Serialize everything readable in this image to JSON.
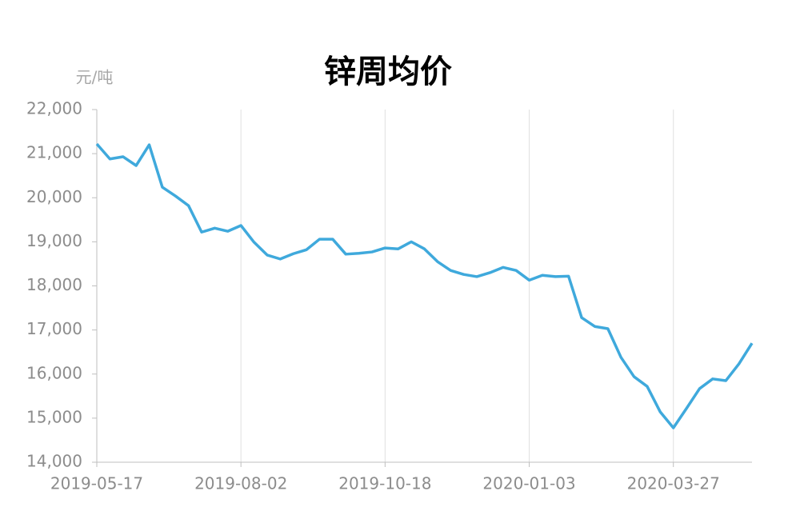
{
  "chart_data": {
    "type": "line",
    "title": "锌周均价",
    "y_unit": "元/吨",
    "categories": [
      "2019-05-17",
      null,
      null,
      null,
      null,
      null,
      null,
      null,
      null,
      null,
      null,
      "2019-08-02",
      null,
      null,
      null,
      null,
      null,
      null,
      null,
      null,
      null,
      null,
      "2019-10-18",
      null,
      null,
      null,
      null,
      null,
      null,
      null,
      null,
      null,
      null,
      "2020-01-03",
      null,
      null,
      null,
      null,
      null,
      null,
      null,
      null,
      null,
      null,
      "2020-03-27",
      null,
      null,
      null,
      null,
      null,
      null
    ],
    "series": [
      {
        "name": "锌周均价",
        "color": "#3fa9dc",
        "values": [
          21220,
          20880,
          20930,
          20730,
          21200,
          20240,
          20040,
          19820,
          19220,
          19310,
          19240,
          19370,
          18990,
          18700,
          18610,
          18730,
          18820,
          19060,
          19060,
          18720,
          18740,
          18770,
          18860,
          18840,
          19000,
          18840,
          18550,
          18350,
          18260,
          18210,
          18300,
          18420,
          18350,
          18130,
          18240,
          18210,
          18220,
          17280,
          17080,
          17030,
          16380,
          15940,
          15720,
          15140,
          14780,
          15220,
          15670,
          15890,
          15850,
          16230,
          16700
        ]
      }
    ],
    "ylim": [
      14000,
      22000
    ],
    "yticks": [
      {
        "value": 14000,
        "label": "14,000"
      },
      {
        "value": 15000,
        "label": "15,000"
      },
      {
        "value": 16000,
        "label": "16,000"
      },
      {
        "value": 17000,
        "label": "17,000"
      },
      {
        "value": 18000,
        "label": "18,000"
      },
      {
        "value": 19000,
        "label": "19,000"
      },
      {
        "value": 20000,
        "label": "20,000"
      },
      {
        "value": 21000,
        "label": "21,000"
      },
      {
        "value": 22000,
        "label": "22,000"
      }
    ],
    "grid": "x"
  }
}
